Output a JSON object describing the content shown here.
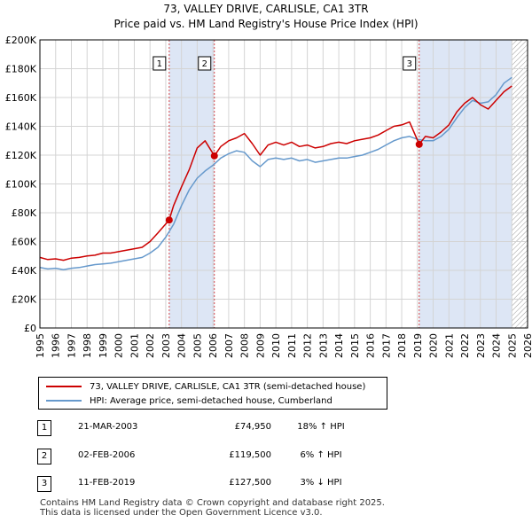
{
  "title": "73, VALLEY DRIVE, CARLISLE, CA1 3TR",
  "subtitle": "Price paid vs. HM Land Registry's House Price Index (HPI)",
  "colors": {
    "price": "#cc0000",
    "hpi": "#6699cc",
    "shade": "#dde6f5",
    "marker": "#cc0000"
  },
  "legend": {
    "price_label": "73, VALLEY DRIVE, CARLISLE, CA1 3TR (semi-detached house)",
    "hpi_label": "HPI: Average price, semi-detached house, Cumberland"
  },
  "transactions": [
    {
      "num": "1",
      "date": "21-MAR-2003",
      "price": "£74,950",
      "hpi": "18% ↑ HPI"
    },
    {
      "num": "2",
      "date": "02-FEB-2006",
      "price": "£119,500",
      "hpi": "6% ↑ HPI"
    },
    {
      "num": "3",
      "date": "11-FEB-2019",
      "price": "£127,500",
      "hpi": "3% ↓ HPI"
    }
  ],
  "footer": {
    "line1": "Contains HM Land Registry data © Crown copyright and database right 2025.",
    "line2": "This data is licensed under the Open Government Licence v3.0."
  },
  "chart_data": {
    "type": "line",
    "x_range": [
      1995,
      2026
    ],
    "ylim": [
      0,
      200000
    ],
    "y_ticks": [
      0,
      20000,
      40000,
      60000,
      80000,
      100000,
      120000,
      140000,
      160000,
      180000,
      200000
    ],
    "y_tick_labels": [
      "£0",
      "£20K",
      "£40K",
      "£60K",
      "£80K",
      "£100K",
      "£120K",
      "£140K",
      "£160K",
      "£180K",
      "£200K"
    ],
    "x_ticks": [
      1995,
      1996,
      1997,
      1998,
      1999,
      2000,
      2001,
      2002,
      2003,
      2004,
      2005,
      2006,
      2007,
      2008,
      2009,
      2010,
      2011,
      2012,
      2013,
      2014,
      2015,
      2016,
      2017,
      2018,
      2019,
      2020,
      2021,
      2022,
      2023,
      2024,
      2025,
      2026
    ],
    "x_tick_labels": [
      "1995",
      "1996",
      "1997",
      "1998",
      "1999",
      "2000",
      "2001",
      "2002",
      "2003",
      "2004",
      "2005",
      "2006",
      "2007",
      "2008",
      "2009",
      "2010",
      "2011",
      "2012",
      "2013",
      "2014",
      "2015",
      "2016",
      "2017",
      "2018",
      "2019",
      "2020",
      "2021",
      "2022",
      "2023",
      "2024",
      "2025",
      "2026"
    ],
    "shaded_spans": [
      [
        2003.22,
        2006.09
      ],
      [
        2019.11,
        2025.0
      ]
    ],
    "hatched_from": 2025.0,
    "events": [
      {
        "label": "1",
        "x": 2003.22,
        "y": 74950
      },
      {
        "label": "2",
        "x": 2006.09,
        "y": 119500
      },
      {
        "label": "3",
        "x": 2019.11,
        "y": 127500
      }
    ],
    "series": [
      {
        "name": "73, VALLEY DRIVE, CARLISLE, CA1 3TR (semi-detached house)",
        "x": [
          1995.0,
          1995.5,
          1996.0,
          1996.5,
          1997.0,
          1997.5,
          1998.0,
          1998.5,
          1999.0,
          1999.5,
          2000.0,
          2000.5,
          2001.0,
          2001.5,
          2002.0,
          2002.5,
          2003.22,
          2003.5,
          2004.0,
          2004.5,
          2005.0,
          2005.5,
          2006.09,
          2006.5,
          2007.0,
          2007.5,
          2008.0,
          2008.5,
          2009.0,
          2009.5,
          2010.0,
          2010.5,
          2011.0,
          2011.5,
          2012.0,
          2012.5,
          2013.0,
          2013.5,
          2014.0,
          2014.5,
          2015.0,
          2015.5,
          2016.0,
          2016.5,
          2017.0,
          2017.5,
          2018.0,
          2018.5,
          2019.11,
          2019.5,
          2020.0,
          2020.5,
          2021.0,
          2021.5,
          2022.0,
          2022.5,
          2023.0,
          2023.5,
          2024.0,
          2024.5,
          2025.0
        ],
        "y": [
          49000,
          47500,
          48000,
          47000,
          48500,
          49000,
          50000,
          50500,
          52000,
          52000,
          53000,
          54000,
          55000,
          56000,
          60000,
          66000,
          74950,
          85000,
          98000,
          110000,
          125000,
          130000,
          119500,
          126000,
          130000,
          132000,
          135000,
          128000,
          120000,
          127000,
          129000,
          127000,
          129000,
          126000,
          127000,
          125000,
          126000,
          128000,
          129000,
          128000,
          130000,
          131000,
          132000,
          134000,
          137000,
          140000,
          141000,
          143000,
          127500,
          133000,
          132000,
          136000,
          141000,
          150000,
          156000,
          160000,
          155000,
          152000,
          158000,
          164000,
          168000
        ]
      },
      {
        "name": "HPI: Average price, semi-detached house, Cumberland",
        "x": [
          1995.0,
          1995.5,
          1996.0,
          1996.5,
          1997.0,
          1997.5,
          1998.0,
          1998.5,
          1999.0,
          1999.5,
          2000.0,
          2000.5,
          2001.0,
          2001.5,
          2002.0,
          2002.5,
          2003.0,
          2003.5,
          2004.0,
          2004.5,
          2005.0,
          2005.5,
          2006.0,
          2006.5,
          2007.0,
          2007.5,
          2008.0,
          2008.5,
          2009.0,
          2009.5,
          2010.0,
          2010.5,
          2011.0,
          2011.5,
          2012.0,
          2012.5,
          2013.0,
          2013.5,
          2014.0,
          2014.5,
          2015.0,
          2015.5,
          2016.0,
          2016.5,
          2017.0,
          2017.5,
          2018.0,
          2018.5,
          2019.0,
          2019.5,
          2020.0,
          2020.5,
          2021.0,
          2021.5,
          2022.0,
          2022.5,
          2023.0,
          2023.5,
          2024.0,
          2024.5,
          2025.0
        ],
        "y": [
          42000,
          41000,
          41500,
          40500,
          41500,
          42000,
          43000,
          44000,
          44500,
          45000,
          46000,
          47000,
          48000,
          49000,
          52000,
          56000,
          63000,
          72000,
          85000,
          96000,
          104000,
          109000,
          113000,
          118000,
          121000,
          123000,
          122000,
          116000,
          112000,
          117000,
          118000,
          117000,
          118000,
          116000,
          117000,
          115000,
          116000,
          117000,
          118000,
          118000,
          119000,
          120000,
          122000,
          124000,
          127000,
          130000,
          132000,
          133000,
          131000,
          130000,
          130000,
          133000,
          138000,
          146000,
          153000,
          158000,
          156000,
          157000,
          162000,
          170000,
          174000
        ]
      }
    ]
  }
}
